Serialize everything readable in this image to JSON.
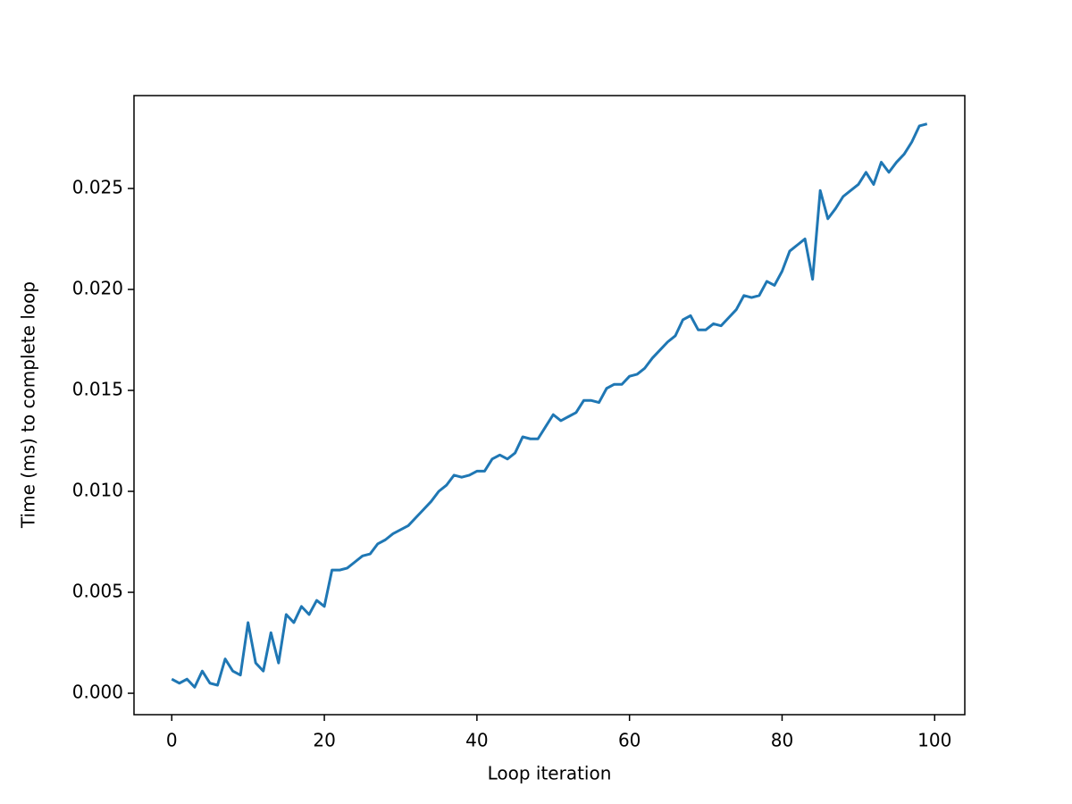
{
  "chart_data": {
    "type": "line",
    "xlabel": "Loop iteration",
    "ylabel": "Time (ms) to complete loop",
    "x": [
      0,
      1,
      2,
      3,
      4,
      5,
      6,
      7,
      8,
      9,
      10,
      11,
      12,
      13,
      14,
      15,
      16,
      17,
      18,
      19,
      20,
      21,
      22,
      23,
      24,
      25,
      26,
      27,
      28,
      29,
      30,
      31,
      32,
      33,
      34,
      35,
      36,
      37,
      38,
      39,
      40,
      41,
      42,
      43,
      44,
      45,
      46,
      47,
      48,
      49,
      50,
      51,
      52,
      53,
      54,
      55,
      56,
      57,
      58,
      59,
      60,
      61,
      62,
      63,
      64,
      65,
      66,
      67,
      68,
      69,
      70,
      71,
      72,
      73,
      74,
      75,
      76,
      77,
      78,
      79,
      80,
      81,
      82,
      83,
      84,
      85,
      86,
      87,
      88,
      89,
      90,
      91,
      92,
      93,
      94,
      95,
      96,
      97,
      98,
      99
    ],
    "values": [
      0.0007,
      0.0005,
      0.0007,
      0.0003,
      0.0011,
      0.0005,
      0.0004,
      0.0017,
      0.0011,
      0.0009,
      0.0035,
      0.0015,
      0.0011,
      0.003,
      0.0015,
      0.0039,
      0.0035,
      0.0043,
      0.0039,
      0.0046,
      0.0043,
      0.0061,
      0.0061,
      0.0062,
      0.0065,
      0.0068,
      0.0069,
      0.0074,
      0.0076,
      0.0079,
      0.0081,
      0.0083,
      0.0087,
      0.0091,
      0.0095,
      0.01,
      0.0103,
      0.0108,
      0.0107,
      0.0108,
      0.011,
      0.011,
      0.0116,
      0.0118,
      0.0116,
      0.0119,
      0.0127,
      0.0126,
      0.0126,
      0.0132,
      0.0138,
      0.0135,
      0.0137,
      0.0139,
      0.0145,
      0.0145,
      0.0144,
      0.0151,
      0.0153,
      0.0153,
      0.0157,
      0.0158,
      0.0161,
      0.0166,
      0.017,
      0.0174,
      0.0177,
      0.0185,
      0.0187,
      0.018,
      0.018,
      0.0183,
      0.0182,
      0.0186,
      0.019,
      0.0197,
      0.0196,
      0.0197,
      0.0204,
      0.0202,
      0.0209,
      0.0219,
      0.0222,
      0.0225,
      0.0205,
      0.0249,
      0.0235,
      0.024,
      0.0246,
      0.0249,
      0.0252,
      0.0258,
      0.0252,
      0.0263,
      0.0258,
      0.0263,
      0.0267,
      0.0273,
      0.0281,
      0.0282
    ],
    "color": "#1f77b4",
    "xlim": [
      -4.95,
      103.95
    ],
    "ylim": [
      -0.00106,
      0.0296
    ],
    "xticks": [
      0,
      20,
      40,
      60,
      80,
      100
    ],
    "yticks": [
      {
        "value": 0,
        "label": "0.000"
      },
      0.005,
      {
        "value": 0.01,
        "label": "0.010"
      },
      0.015,
      {
        "value": 0.02,
        "label": "0.020"
      },
      0.025
    ]
  }
}
